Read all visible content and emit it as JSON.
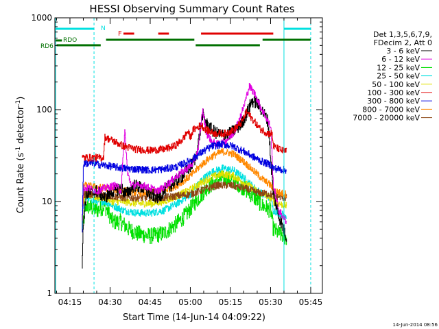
{
  "chart_data": {
    "type": "line",
    "title": "HESSI Observing Summary Count Rates",
    "xlabel": "Start Time (14-Jun-14 04:09:22)",
    "ylabel": "Count Rate (s",
    "ylabel_sup": "-1",
    "ylabel_tail": " detector",
    "ylabel_sup2": "-1",
    "ylabel_close": ")",
    "y_scale": "log",
    "ylim": [
      1,
      1000
    ],
    "xlim": [
      "04:09:22",
      "05:49:22"
    ],
    "x_ticks": [
      "04:15",
      "04:30",
      "04:45",
      "05:00",
      "05:15",
      "05:30",
      "05:45"
    ],
    "y_ticks": [
      "1",
      "10",
      "100",
      "1000"
    ],
    "timestamp": "14-Jun-2014 08:56",
    "legend": {
      "header": [
        "Det 1,3,5,6,7,9,",
        "FDecim 2, Att 0"
      ],
      "placement": "right"
    },
    "annotations": {
      "night_label": "N",
      "flare_label": "F",
      "rdo_label": "RDO",
      "rd6_label": "RD6"
    },
    "markers": {
      "solid_vertical_times": [
        "04:09:40",
        "05:35:00"
      ],
      "dashed_vertical_times": [
        "04:24:00",
        "05:45:00"
      ]
    },
    "flag_bars": {
      "night": [
        [
          "04:09:40",
          "04:24:00"
        ],
        [
          "05:35:00",
          "05:45:00"
        ]
      ],
      "flare": [
        [
          "04:35:00",
          "04:39:00"
        ],
        [
          "04:48:00",
          "04:52:00"
        ],
        [
          "05:04:00",
          "05:31:00"
        ]
      ],
      "rdo": [
        [
          "04:09:40",
          "04:12:00"
        ]
      ],
      "rd6_upper": [
        [
          "04:28:30",
          "05:01:30"
        ],
        [
          "05:27:00",
          "05:45:00"
        ]
      ],
      "rd6_lower": [
        [
          "04:10:00",
          "04:26:30"
        ],
        [
          "05:02:00",
          "05:26:00"
        ]
      ]
    },
    "data_range": [
      "04:19:30",
      "05:36:30"
    ],
    "series": [
      {
        "name": "3 - 6 keV",
        "color": "#000000",
        "points": [
          [
            "04:19:30",
            2
          ],
          [
            "04:20:00",
            6
          ],
          [
            "04:21:00",
            12
          ],
          [
            "04:25:00",
            13
          ],
          [
            "04:28:00",
            11
          ],
          [
            "04:31:00",
            13
          ],
          [
            "04:34:00",
            14
          ],
          [
            "04:36:00",
            12
          ],
          [
            "04:39:00",
            15
          ],
          [
            "04:42:00",
            14
          ],
          [
            "04:45:00",
            12
          ],
          [
            "04:48:00",
            11
          ],
          [
            "04:51:00",
            14
          ],
          [
            "04:54:00",
            16
          ],
          [
            "04:57:00",
            19
          ],
          [
            "05:00:00",
            24
          ],
          [
            "05:02:00",
            30
          ],
          [
            "05:03:30",
            55
          ],
          [
            "05:04:30",
            90
          ],
          [
            "05:06:00",
            70
          ],
          [
            "05:08:00",
            60
          ],
          [
            "05:10:00",
            55
          ],
          [
            "05:13:00",
            52
          ],
          [
            "05:16:00",
            58
          ],
          [
            "05:19:00",
            70
          ],
          [
            "05:21:00",
            90
          ],
          [
            "05:23:00",
            125
          ],
          [
            "05:25:00",
            118
          ],
          [
            "05:27:00",
            95
          ],
          [
            "05:29:00",
            75
          ],
          [
            "05:31:00",
            12
          ],
          [
            "05:33:00",
            7
          ],
          [
            "05:36:00",
            4
          ]
        ]
      },
      {
        "name": "6 - 12 keV",
        "color": "#e000e0",
        "points": [
          [
            "04:19:30",
            6
          ],
          [
            "04:20:00",
            14
          ],
          [
            "04:22:00",
            14
          ],
          [
            "04:25:00",
            13
          ],
          [
            "04:28:00",
            14
          ],
          [
            "04:32:00",
            15
          ],
          [
            "04:34:00",
            13
          ],
          [
            "04:35:30",
            60
          ],
          [
            "04:36:30",
            20
          ],
          [
            "04:38:00",
            15
          ],
          [
            "04:42:00",
            15
          ],
          [
            "04:45:00",
            14
          ],
          [
            "04:48:00",
            13
          ],
          [
            "04:52:00",
            16
          ],
          [
            "04:55:00",
            19
          ],
          [
            "04:58:00",
            22
          ],
          [
            "05:01:00",
            26
          ],
          [
            "05:03:00",
            38
          ],
          [
            "05:04:30",
            100
          ],
          [
            "05:06:00",
            55
          ],
          [
            "05:08:00",
            45
          ],
          [
            "05:10:00",
            42
          ],
          [
            "05:13:00",
            45
          ],
          [
            "05:16:00",
            55
          ],
          [
            "05:18:00",
            75
          ],
          [
            "05:20:00",
            110
          ],
          [
            "05:22:00",
            180
          ],
          [
            "05:24:00",
            150
          ],
          [
            "05:26:00",
            110
          ],
          [
            "05:28:00",
            85
          ],
          [
            "05:30:00",
            65
          ],
          [
            "05:31:00",
            15
          ],
          [
            "05:33:00",
            8
          ],
          [
            "05:36:00",
            6
          ]
        ]
      },
      {
        "name": "12 - 25 keV",
        "color": "#00e000",
        "points": [
          [
            "04:19:30",
            5
          ],
          [
            "04:21:00",
            9
          ],
          [
            "04:25:00",
            8
          ],
          [
            "04:28:00",
            9
          ],
          [
            "04:31:00",
            6
          ],
          [
            "04:34:00",
            6
          ],
          [
            "04:37:00",
            5
          ],
          [
            "04:40:00",
            4.5
          ],
          [
            "04:45:00",
            4.2
          ],
          [
            "04:50:00",
            4.5
          ],
          [
            "04:54:00",
            5.5
          ],
          [
            "04:58:00",
            7
          ],
          [
            "05:02:00",
            10
          ],
          [
            "05:06:00",
            14
          ],
          [
            "05:10:00",
            17
          ],
          [
            "05:13:00",
            18
          ],
          [
            "05:16:00",
            17
          ],
          [
            "05:20:00",
            14
          ],
          [
            "05:24:00",
            11
          ],
          [
            "05:27:00",
            9
          ],
          [
            "05:30:00",
            8
          ],
          [
            "05:31:00",
            5
          ],
          [
            "05:33:00",
            4.5
          ],
          [
            "05:36:00",
            4
          ]
        ]
      },
      {
        "name": "25 - 50 keV",
        "color": "#00e0e0",
        "points": [
          [
            "04:19:30",
            8
          ],
          [
            "04:21:00",
            11
          ],
          [
            "04:25:00",
            10
          ],
          [
            "04:28:00",
            10
          ],
          [
            "04:31:00",
            9
          ],
          [
            "04:35:00",
            8
          ],
          [
            "04:40:00",
            7.5
          ],
          [
            "04:45:00",
            7.5
          ],
          [
            "04:50:00",
            8
          ],
          [
            "04:55:00",
            9.5
          ],
          [
            "05:00:00",
            12
          ],
          [
            "05:04:00",
            17
          ],
          [
            "05:08:00",
            21
          ],
          [
            "05:12:00",
            23
          ],
          [
            "05:16:00",
            22
          ],
          [
            "05:20:00",
            18
          ],
          [
            "05:24:00",
            14
          ],
          [
            "05:27:00",
            12
          ],
          [
            "05:30:00",
            11
          ],
          [
            "05:31:00",
            8
          ],
          [
            "05:33:00",
            7.5
          ],
          [
            "05:36:00",
            7
          ]
        ]
      },
      {
        "name": "50 - 100 keV",
        "color": "#e0e000",
        "points": [
          [
            "04:19:30",
            9
          ],
          [
            "04:21:00",
            12
          ],
          [
            "04:25:00",
            11
          ],
          [
            "04:28:00",
            11
          ],
          [
            "04:31:00",
            10
          ],
          [
            "04:35:00",
            10
          ],
          [
            "04:40:00",
            9.5
          ],
          [
            "04:45:00",
            9.5
          ],
          [
            "04:50:00",
            10
          ],
          [
            "04:55:00",
            11.5
          ],
          [
            "05:00:00",
            13.5
          ],
          [
            "05:04:00",
            16
          ],
          [
            "05:08:00",
            18.5
          ],
          [
            "05:12:00",
            20
          ],
          [
            "05:16:00",
            19
          ],
          [
            "05:20:00",
            16
          ],
          [
            "05:24:00",
            13.5
          ],
          [
            "05:27:00",
            12
          ],
          [
            "05:30:00",
            11
          ],
          [
            "05:31:00",
            10
          ],
          [
            "05:33:00",
            9.5
          ],
          [
            "05:36:00",
            9
          ]
        ]
      },
      {
        "name": "100 - 300 keV",
        "color": "#e00000",
        "points": [
          [
            "04:19:30",
            30
          ],
          [
            "04:27:30",
            30
          ],
          [
            "04:28:00",
            50
          ],
          [
            "04:31:00",
            46
          ],
          [
            "04:35:00",
            40
          ],
          [
            "04:40:00",
            37
          ],
          [
            "04:45:00",
            36
          ],
          [
            "04:50:00",
            37
          ],
          [
            "04:54:00",
            40
          ],
          [
            "04:57:00",
            47
          ],
          [
            "04:59:00",
            58
          ],
          [
            "05:00:00",
            50
          ],
          [
            "05:01:00",
            60
          ],
          [
            "05:04:00",
            68
          ],
          [
            "05:06:00",
            60
          ],
          [
            "05:09:00",
            55
          ],
          [
            "05:13:00",
            55
          ],
          [
            "05:16:00",
            60
          ],
          [
            "05:19:00",
            72
          ],
          [
            "05:21:00",
            95
          ],
          [
            "05:23:00",
            80
          ],
          [
            "05:26:00",
            62
          ],
          [
            "05:29:00",
            55
          ],
          [
            "05:30:30",
            55
          ],
          [
            "05:31:00",
            40
          ],
          [
            "05:34:00",
            36
          ],
          [
            "05:36:00",
            35
          ]
        ]
      },
      {
        "name": "300 - 800 keV",
        "color": "#0000e0",
        "points": [
          [
            "04:19:30",
            5
          ],
          [
            "04:20:00",
            26
          ],
          [
            "04:23:00",
            26
          ],
          [
            "04:27:00",
            25
          ],
          [
            "04:31:00",
            24
          ],
          [
            "04:35:00",
            23
          ],
          [
            "04:40:00",
            22.5
          ],
          [
            "04:45:00",
            22
          ],
          [
            "04:50:00",
            22.5
          ],
          [
            "04:55:00",
            24
          ],
          [
            "05:00:00",
            28
          ],
          [
            "05:04:00",
            34
          ],
          [
            "05:08:00",
            40
          ],
          [
            "05:12:00",
            42
          ],
          [
            "05:16:00",
            40
          ],
          [
            "05:20:00",
            35
          ],
          [
            "05:24:00",
            30
          ],
          [
            "05:27:00",
            27
          ],
          [
            "05:30:00",
            25
          ],
          [
            "05:31:00",
            23
          ],
          [
            "05:33:00",
            22.5
          ],
          [
            "05:36:00",
            22
          ]
        ]
      },
      {
        "name": "800 - 7000 keV",
        "color": "#ff8800",
        "points": [
          [
            "04:19:30",
            5
          ],
          [
            "04:20:00",
            15
          ],
          [
            "04:24:00",
            14.5
          ],
          [
            "04:28:00",
            14
          ],
          [
            "04:32:00",
            13.5
          ],
          [
            "04:36:00",
            13
          ],
          [
            "04:40:00",
            12.5
          ],
          [
            "04:45:00",
            12.5
          ],
          [
            "04:50:00",
            13
          ],
          [
            "04:55:00",
            15
          ],
          [
            "05:00:00",
            19
          ],
          [
            "05:04:00",
            25
          ],
          [
            "05:08:00",
            31
          ],
          [
            "05:12:00",
            35
          ],
          [
            "05:16:00",
            33
          ],
          [
            "05:20:00",
            27
          ],
          [
            "05:24:00",
            21
          ],
          [
            "05:27:00",
            17.5
          ],
          [
            "05:30:00",
            15
          ],
          [
            "05:31:00",
            13.5
          ],
          [
            "05:33:00",
            12.5
          ],
          [
            "05:36:00",
            12
          ]
        ]
      },
      {
        "name": "7000 - 20000 keV",
        "color": "#8b4513",
        "points": [
          [
            "04:19:30",
            5
          ],
          [
            "04:20:00",
            12
          ],
          [
            "04:25:00",
            12
          ],
          [
            "04:30:00",
            11.5
          ],
          [
            "04:35:00",
            11
          ],
          [
            "04:40:00",
            11
          ],
          [
            "04:45:00",
            11
          ],
          [
            "04:50:00",
            11
          ],
          [
            "04:55:00",
            11.5
          ],
          [
            "05:00:00",
            12
          ],
          [
            "05:05:00",
            13.5
          ],
          [
            "05:10:00",
            15
          ],
          [
            "05:15:00",
            15
          ],
          [
            "05:20:00",
            14
          ],
          [
            "05:25:00",
            12.5
          ],
          [
            "05:30:00",
            12
          ],
          [
            "05:31:00",
            11.5
          ],
          [
            "05:36:00",
            11
          ]
        ]
      }
    ]
  }
}
